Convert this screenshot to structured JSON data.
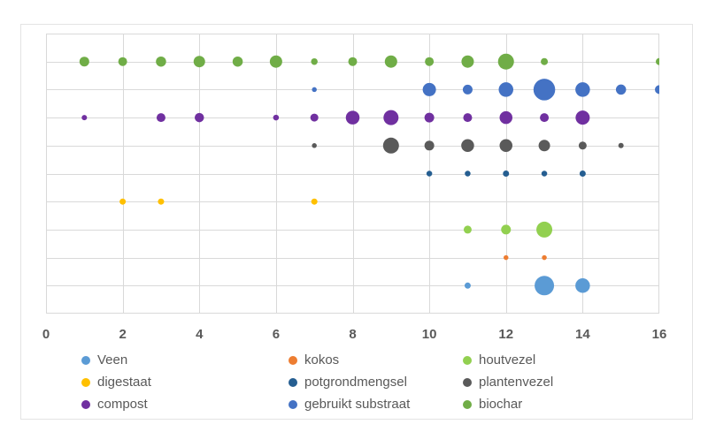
{
  "chart_data": {
    "type": "scatter",
    "subtype": "bubble",
    "title": "",
    "xlabel": "",
    "ylabel": "",
    "x_axis": {
      "min": 0,
      "max": 16,
      "tick_step": 2,
      "tick_labels": [
        "0",
        "2",
        "4",
        "6",
        "8",
        "10",
        "12",
        "14",
        "16"
      ],
      "gridlines": "every 2 units"
    },
    "y_axis": {
      "min": 0,
      "max": 10,
      "gridline_step": 1,
      "tick_labels": [],
      "note": "each series occupies one horizontal row; bubble diameter (d) in px encodes magnitude"
    },
    "legend_position": "bottom",
    "series": [
      {
        "name": "Veen",
        "color": "#5B9BD5",
        "row_y": 1,
        "points": [
          {
            "x": 11,
            "d": 7
          },
          {
            "x": 13,
            "d": 22
          },
          {
            "x": 14,
            "d": 16.5
          }
        ]
      },
      {
        "name": "kokos",
        "color": "#ED7D31",
        "row_y": 2,
        "points": [
          {
            "x": 12,
            "d": 5.5
          },
          {
            "x": 13,
            "d": 5.5
          }
        ]
      },
      {
        "name": "houtvezel",
        "color": "#92D050",
        "row_y": 3,
        "points": [
          {
            "x": 11,
            "d": 9
          },
          {
            "x": 12,
            "d": 11
          },
          {
            "x": 13,
            "d": 18
          }
        ]
      },
      {
        "name": "digestaat",
        "color": "#FFC000",
        "row_y": 4,
        "points": [
          {
            "x": 2,
            "d": 7
          },
          {
            "x": 3,
            "d": 7
          },
          {
            "x": 7,
            "d": 7
          }
        ]
      },
      {
        "name": "potgrondmengsel",
        "color": "#255E91",
        "row_y": 5,
        "points": [
          {
            "x": 10,
            "d": 6.5
          },
          {
            "x": 11,
            "d": 6.5
          },
          {
            "x": 12,
            "d": 7
          },
          {
            "x": 13,
            "d": 6.5
          },
          {
            "x": 14,
            "d": 7
          }
        ]
      },
      {
        "name": "plantenvezel",
        "color": "#5A5A5A",
        "row_y": 6,
        "points": [
          {
            "x": 7,
            "d": 5.5
          },
          {
            "x": 9,
            "d": 18
          },
          {
            "x": 10,
            "d": 11
          },
          {
            "x": 11,
            "d": 14.5
          },
          {
            "x": 12,
            "d": 14.5
          },
          {
            "x": 13,
            "d": 13
          },
          {
            "x": 14,
            "d": 9
          },
          {
            "x": 15,
            "d": 6
          }
        ]
      },
      {
        "name": "compost",
        "color": "#7030A0",
        "row_y": 7,
        "points": [
          {
            "x": 1,
            "d": 6
          },
          {
            "x": 3,
            "d": 10
          },
          {
            "x": 4,
            "d": 10.5
          },
          {
            "x": 6,
            "d": 6.5
          },
          {
            "x": 7,
            "d": 9
          },
          {
            "x": 8,
            "d": 15.5
          },
          {
            "x": 9,
            "d": 17
          },
          {
            "x": 10,
            "d": 11
          },
          {
            "x": 11,
            "d": 10
          },
          {
            "x": 12,
            "d": 14.5
          },
          {
            "x": 13,
            "d": 10
          },
          {
            "x": 14,
            "d": 16
          }
        ]
      },
      {
        "name": "gebruikt substraat",
        "color": "#4472C4",
        "row_y": 8,
        "points": [
          {
            "x": 7,
            "d": 5.5
          },
          {
            "x": 10,
            "d": 15
          },
          {
            "x": 11,
            "d": 11
          },
          {
            "x": 12,
            "d": 16.5
          },
          {
            "x": 13,
            "d": 24.5
          },
          {
            "x": 14,
            "d": 16.5
          },
          {
            "x": 15,
            "d": 11.5
          },
          {
            "x": 16,
            "d": 10
          }
        ]
      },
      {
        "name": "biochar",
        "color": "#70AD47",
        "row_y": 9,
        "points": [
          {
            "x": 1,
            "d": 11
          },
          {
            "x": 2,
            "d": 10
          },
          {
            "x": 3,
            "d": 11.5
          },
          {
            "x": 4,
            "d": 13
          },
          {
            "x": 5,
            "d": 11.5
          },
          {
            "x": 6,
            "d": 14
          },
          {
            "x": 7,
            "d": 7.5
          },
          {
            "x": 8,
            "d": 10
          },
          {
            "x": 9,
            "d": 14
          },
          {
            "x": 10,
            "d": 10
          },
          {
            "x": 11,
            "d": 14
          },
          {
            "x": 12,
            "d": 18
          },
          {
            "x": 13,
            "d": 8
          },
          {
            "x": 16,
            "d": 8
          }
        ]
      }
    ]
  },
  "legend": {
    "items": [
      {
        "label": "Veen",
        "color": "#5B9BD5"
      },
      {
        "label": "kokos",
        "color": "#ED7D31"
      },
      {
        "label": "houtvezel",
        "color": "#92D050"
      },
      {
        "label": "digestaat",
        "color": "#FFC000"
      },
      {
        "label": "potgrondmengsel",
        "color": "#255E91"
      },
      {
        "label": "plantenvezel",
        "color": "#5A5A5A"
      },
      {
        "label": "compost",
        "color": "#7030A0"
      },
      {
        "label": "gebruikt substraat",
        "color": "#4472C4"
      },
      {
        "label": "biochar",
        "color": "#70AD47"
      }
    ]
  },
  "styles": {
    "gridline_color": "#D9D9D9",
    "plot_border_color": "#D9D9D9",
    "chart_frame_border_color": "#E3E3E3",
    "axis_label_color": "#595959",
    "legend_text_color": "#595959",
    "background": "#FFFFFF"
  }
}
